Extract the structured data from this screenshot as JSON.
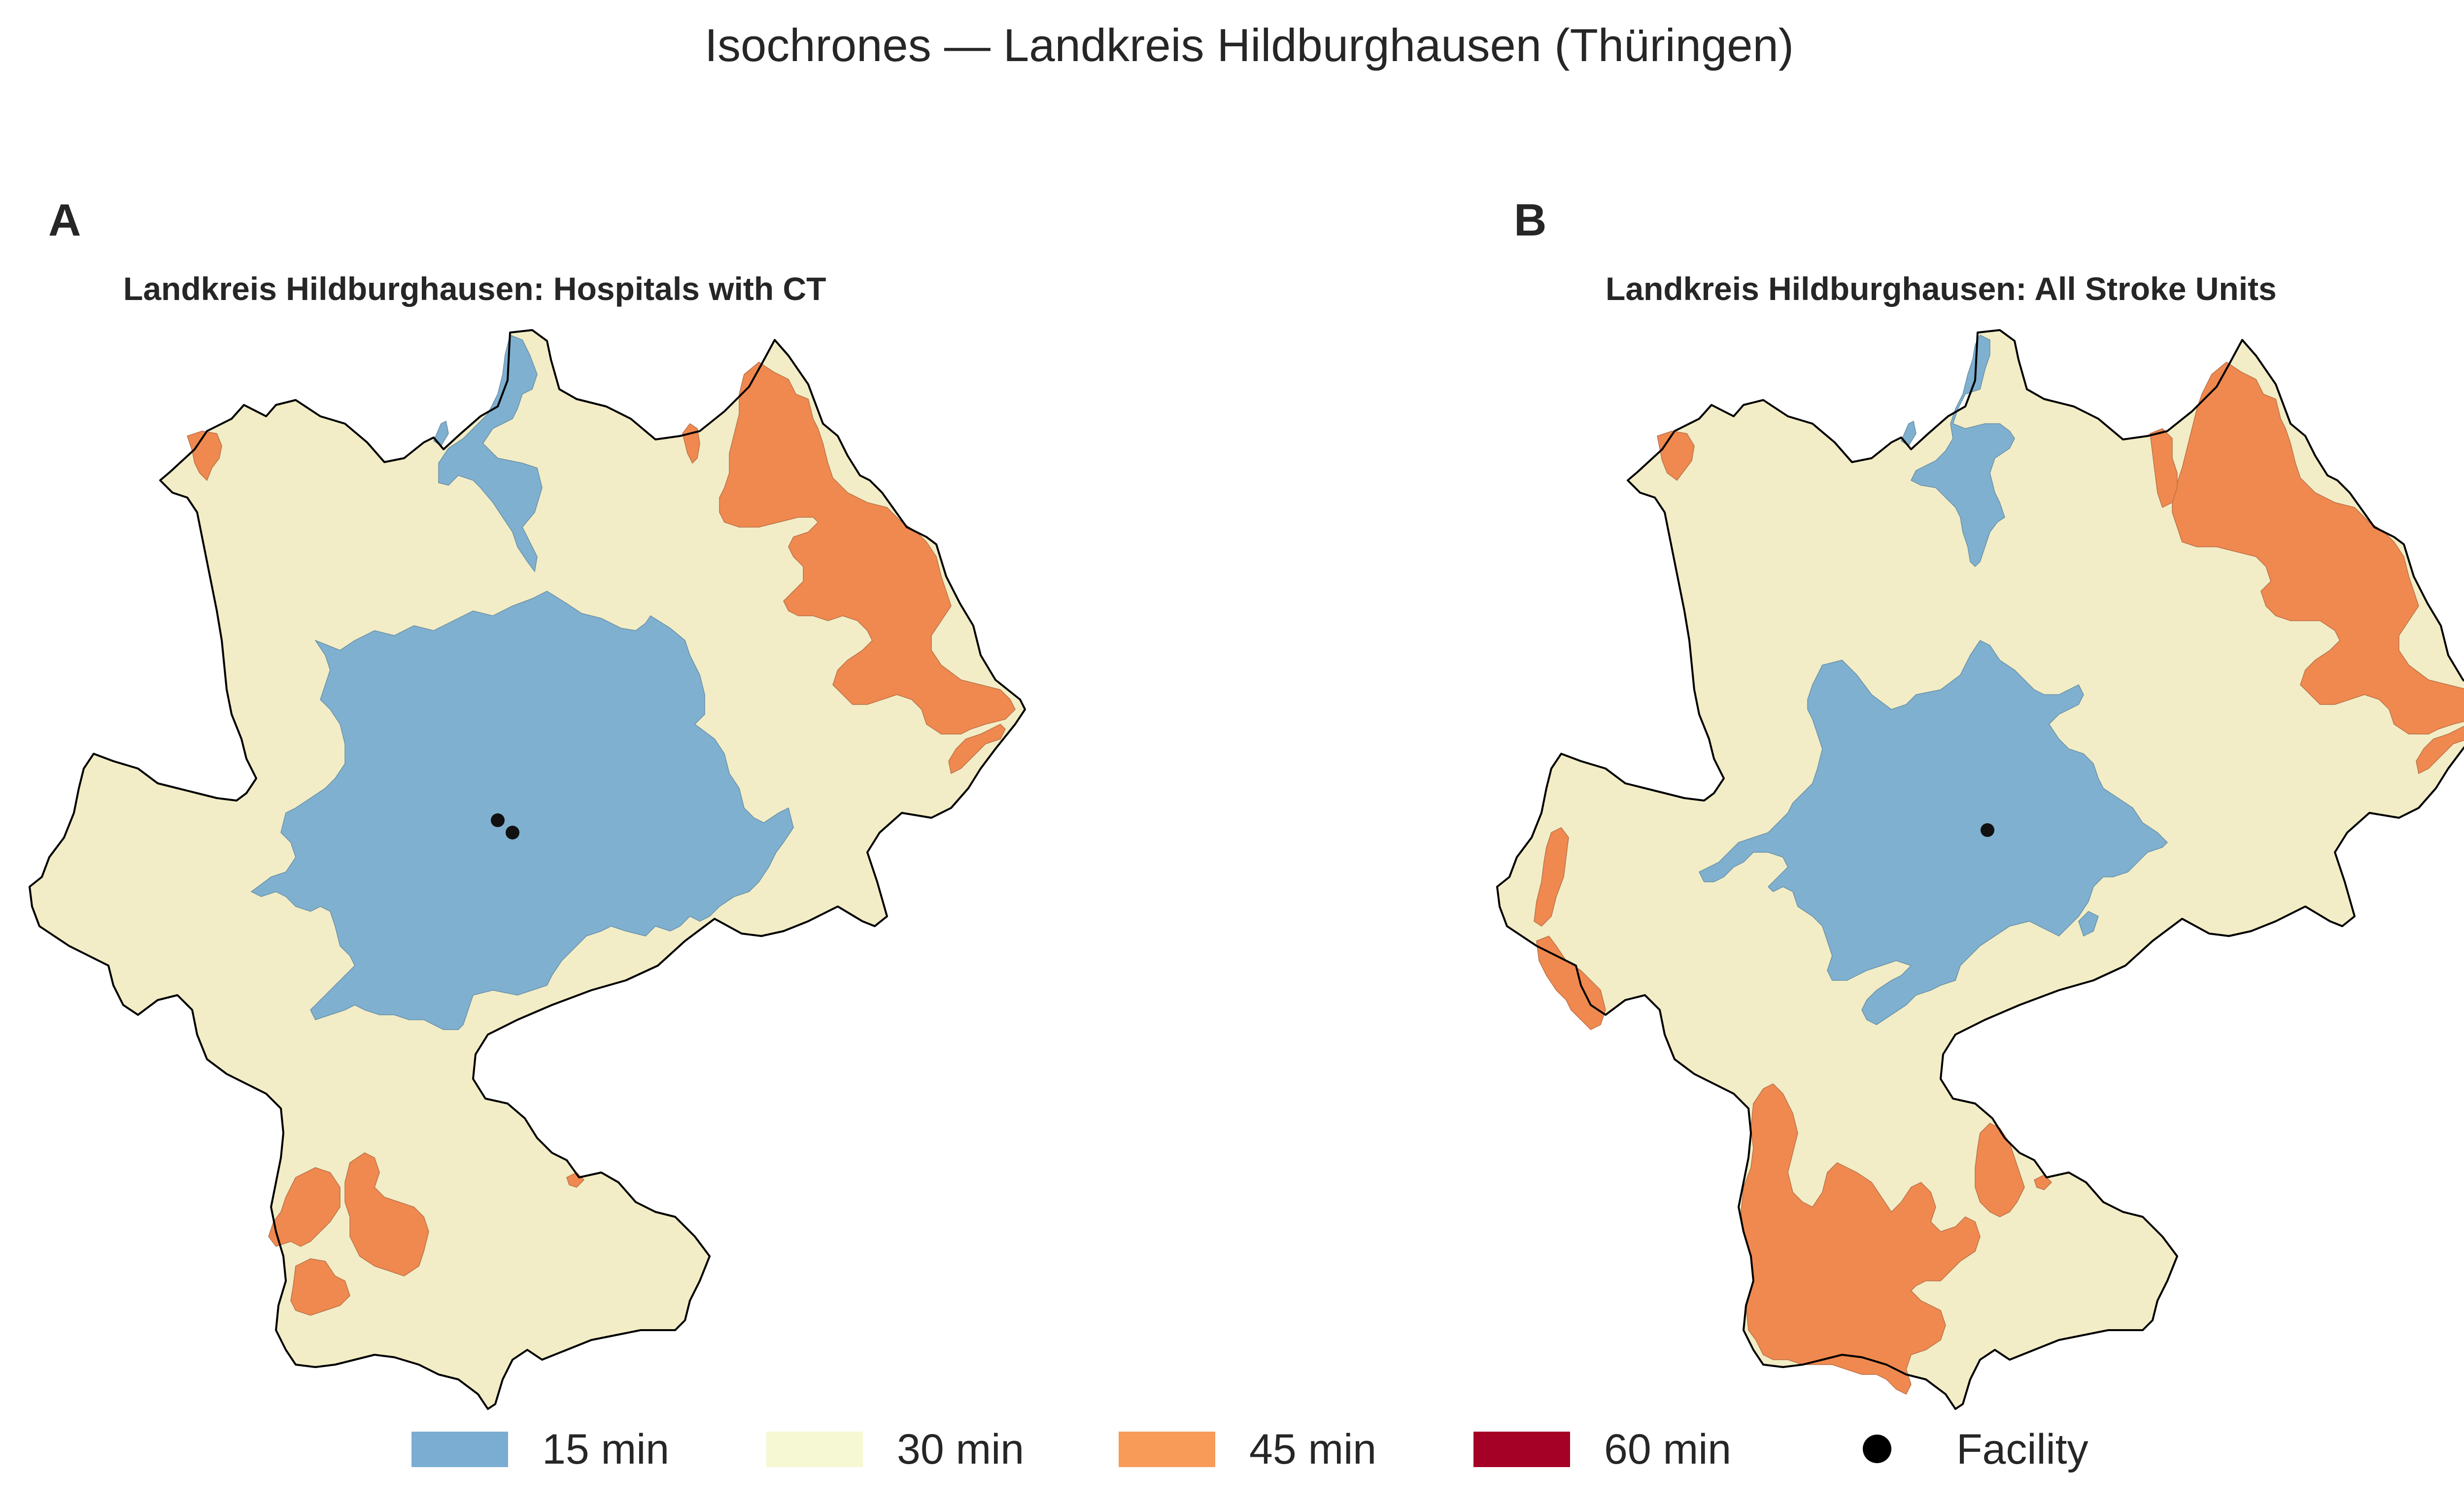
{
  "figure": {
    "title": "Isochrones — Landkreis Hildburghausen (Thüringen)"
  },
  "panels": [
    {
      "letter": "A",
      "title": "Landkreis Hildburghausen: Hospitals with CT",
      "facility_count": 2
    },
    {
      "letter": "B",
      "title": "Landkreis Hildburghausen: All Stroke Units",
      "facility_count": 1
    }
  ],
  "legend": {
    "items": [
      {
        "label": "15 min",
        "color": "#7aadd1",
        "kind": "swatch"
      },
      {
        "label": "30 min",
        "color": "#f5f8d2",
        "kind": "swatch"
      },
      {
        "label": "45 min",
        "color": "#f89a58",
        "kind": "swatch"
      },
      {
        "label": "60 min",
        "color": "#a50026",
        "kind": "swatch"
      },
      {
        "label": "Facility",
        "color": "#000000",
        "kind": "dot"
      }
    ]
  },
  "colors": {
    "zone_15": "#7fb0cf",
    "zone_30": "#f2edc6",
    "zone_45": "#f0894f",
    "boundary": "#000000",
    "facility": "#111111"
  }
}
